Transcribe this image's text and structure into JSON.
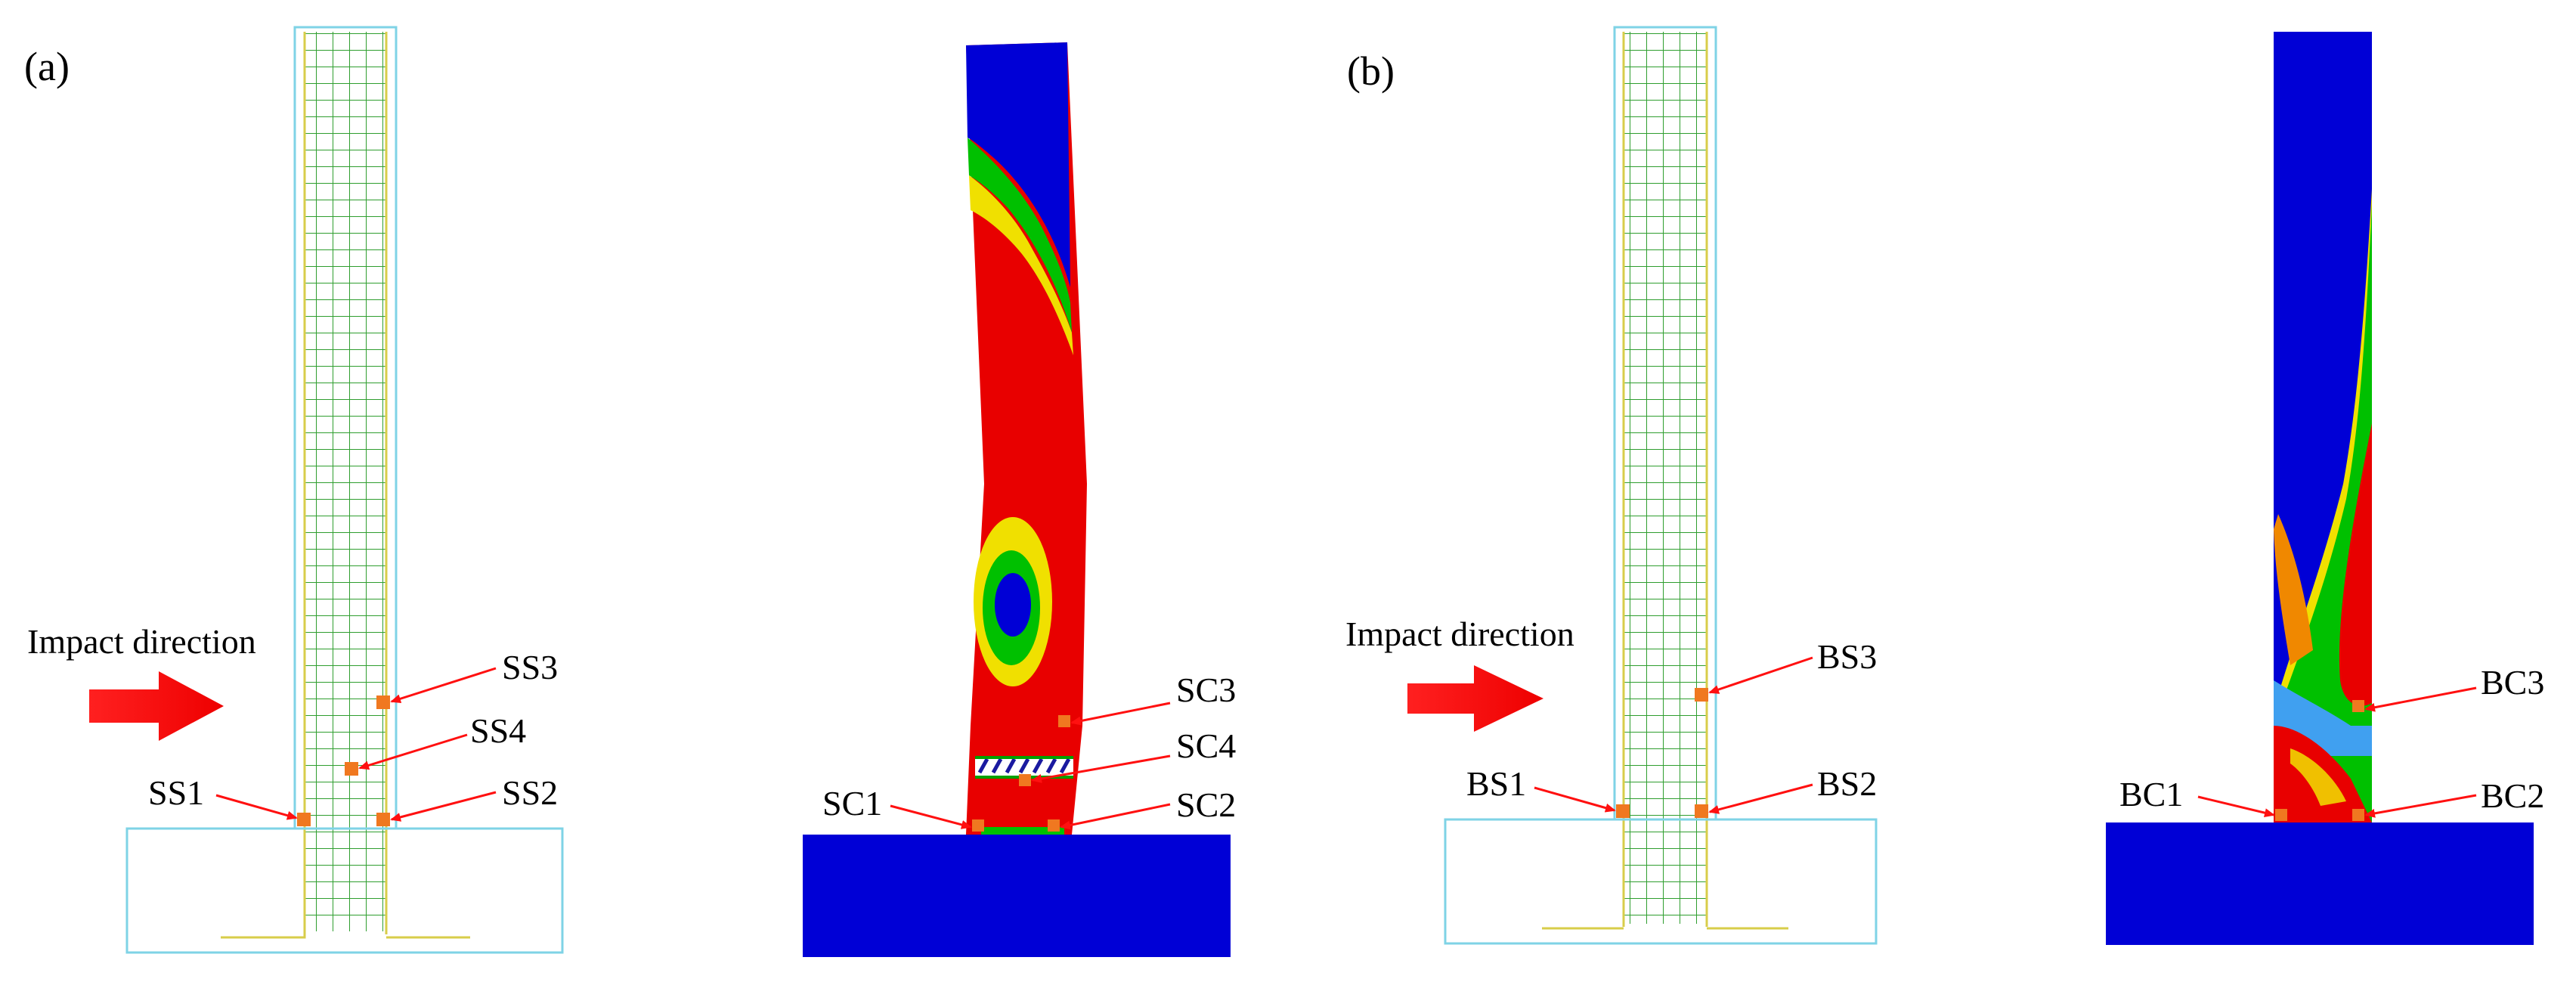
{
  "panels": [
    {
      "letter": "(a)",
      "impact_label": "Impact direction",
      "steel_gauges": [
        "SS1",
        "SS2",
        "SS3",
        "SS4"
      ],
      "concrete_gauges": [
        "SC1",
        "SC2",
        "SC3",
        "SC4"
      ]
    },
    {
      "letter": "(b)",
      "impact_label": "Impact direction",
      "steel_gauges": [
        "BS1",
        "BS2",
        "BS3"
      ],
      "concrete_gauges": [
        "BC1",
        "BC2",
        "BC3"
      ]
    }
  ],
  "colors": {
    "contour_low": "#0000d6",
    "contour_mid": "#00c000",
    "contour_mid2": "#f0e000",
    "contour_high": "#e80000",
    "mesh_green": "#2f9e2f",
    "rebar_yellow": "#d8cd4a",
    "outline_cyan": "#7fd3e6",
    "gauge_orange": "#f07820",
    "arrow_red": "#ff1010"
  }
}
